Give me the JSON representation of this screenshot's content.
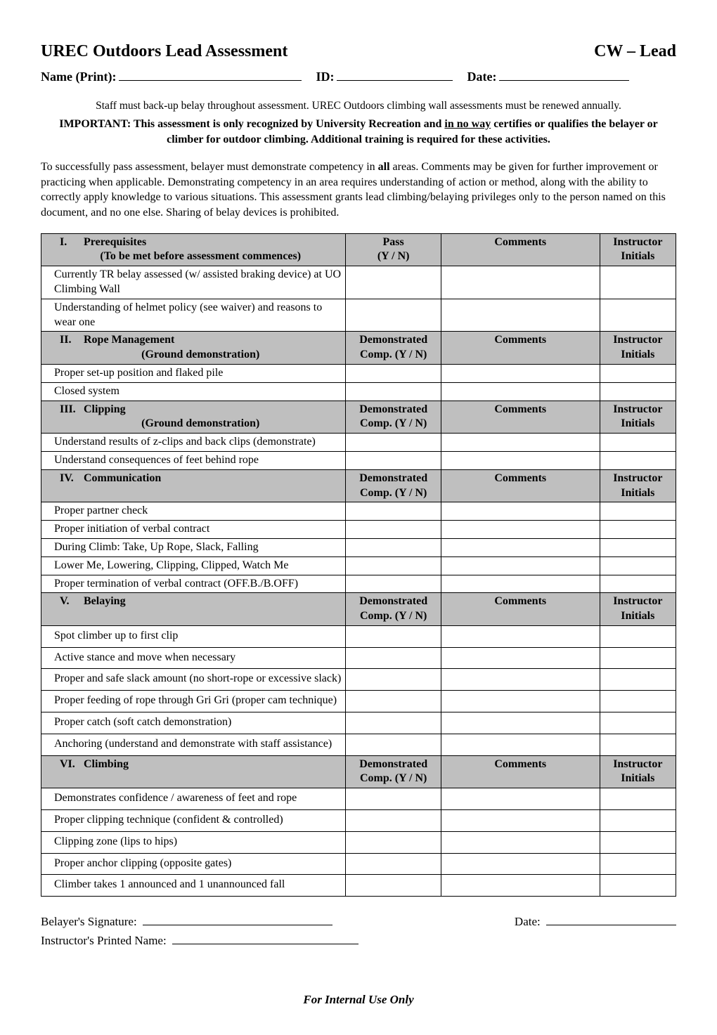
{
  "header": {
    "title_left": "UREC Outdoors Lead Assessment",
    "title_right": "CW – Lead"
  },
  "fields": {
    "name_label": "Name (Print):",
    "id_label": "ID:",
    "date_label": "Date:"
  },
  "notes": {
    "staff_note": "Staff must back-up belay throughout assessment.  UREC Outdoors climbing wall assessments must be renewed annually.",
    "important_prefix": "IMPORTANT: This assessment is only recognized by University Recreation and ",
    "important_underline": "in no way",
    "important_suffix": " certifies or qualifies the belayer or climber for outdoor climbing. Additional training is required for these activities.",
    "body_before_bold": "To successfully pass assessment, belayer must demonstrate competency in ",
    "body_bold": "all",
    "body_after_bold": " areas. Comments may be given for further improvement or practicing when applicable. Demonstrating competency in an area requires understanding of action or method, along with the ability to correctly apply knowledge to various situations. This assessment grants lead climbing/belaying privileges only to the person named on this document, and no one else. Sharing of belay devices is prohibited."
  },
  "table": {
    "columns": {
      "pass_label1": "Pass",
      "pass_label2": "(Y / N)",
      "demo_label1": "Demonstrated",
      "demo_label2": "Comp. (Y / N)",
      "comments": "Comments",
      "initials1": "Instructor",
      "initials2": "Initials"
    },
    "sections": [
      {
        "roman": "I.",
        "title": "Prerequisites",
        "subtitle": "(To be met before assessment commences)",
        "pass_style": "pass",
        "items": [
          "Currently TR belay assessed (w/ assisted braking device) at UO Climbing Wall",
          "Understanding of helmet policy (see waiver) and reasons to wear one"
        ]
      },
      {
        "roman": "II.",
        "title": "Rope Management",
        "subtitle": "(Ground demonstration)",
        "pass_style": "demo",
        "items": [
          "Proper set-up position and flaked pile",
          "Closed system"
        ]
      },
      {
        "roman": "III.",
        "title": "Clipping",
        "subtitle": "(Ground demonstration)",
        "pass_style": "demo",
        "items": [
          "Understand results of z-clips and back clips (demonstrate)",
          "Understand consequences of feet behind rope"
        ]
      },
      {
        "roman": "IV.",
        "title": "Communication",
        "subtitle": "",
        "pass_style": "demo",
        "items": [
          "Proper partner check",
          "Proper initiation of verbal contract",
          "During Climb: Take, Up Rope, Slack, Falling",
          "Lower Me, Lowering, Clipping, Clipped, Watch Me",
          "Proper termination of verbal contract (OFF.B./B.OFF)"
        ]
      },
      {
        "roman": "V.",
        "title": "Belaying",
        "subtitle": "",
        "pass_style": "demo",
        "items_padded": true,
        "items": [
          "Spot climber up to first clip",
          "Active stance and move when necessary",
          "Proper and safe slack amount (no short-rope or excessive slack)",
          "Proper feeding of rope through Gri Gri (proper cam technique)",
          "Proper catch (soft catch demonstration)",
          "Anchoring (understand and demonstrate with staff assistance)"
        ]
      },
      {
        "roman": "VI.",
        "title": "Climbing",
        "subtitle": "",
        "pass_style": "demo",
        "items_padded": true,
        "items": [
          "Demonstrates confidence / awareness of feet and rope",
          "Proper clipping technique (confident & controlled)",
          "Clipping zone (lips to hips)",
          "Proper anchor clipping (opposite gates)",
          "Climber takes 1 announced and 1 unannounced fall"
        ]
      }
    ]
  },
  "signatures": {
    "belayer": "Belayer's Signature:",
    "date": "Date:",
    "instructor": "Instructor's Printed Name:"
  },
  "footer": "For Internal Use Only",
  "style": {
    "section_bg": "#bfbfbf",
    "line_widths": {
      "name": 260,
      "id": 165,
      "date": 185,
      "sig": 270,
      "sig_date": 185,
      "instr": 265
    }
  }
}
